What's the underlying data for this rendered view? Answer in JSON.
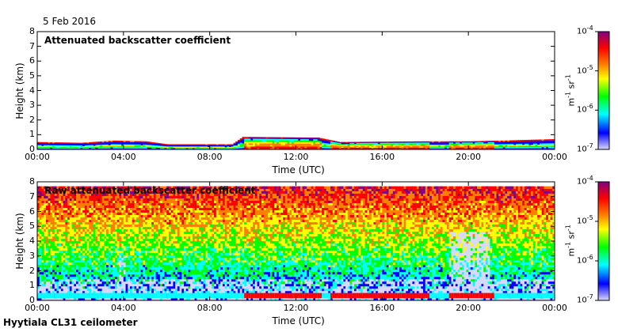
{
  "date_label": "5 Feb 2016",
  "footer_label": "Hyytiala CL31 ceilometer",
  "colorbar": {
    "colors": [
      "#d8d8ff",
      "#0000ff",
      "#00ffff",
      "#00ff00",
      "#ffff00",
      "#ff7f00",
      "#ff0000",
      "#800080"
    ],
    "ticks": [
      "10",
      "10",
      "10",
      "10"
    ],
    "exponents": [
      "-4",
      "-5",
      "-6",
      "-7"
    ],
    "unit_m": "m",
    "unit_m_exp": "-1",
    "unit_sr": "sr",
    "unit_sr_exp": "-1"
  },
  "chart_data": [
    {
      "type": "heatmap",
      "title": "Attenuated backscatter coefficient",
      "xlabel": "Time (UTC)",
      "ylabel": "Height (km)",
      "xlim": [
        0,
        24
      ],
      "ylim": [
        0,
        8
      ],
      "x_ticks": [
        "00:00",
        "04:00",
        "08:00",
        "12:00",
        "16:00",
        "20:00",
        "00:00"
      ],
      "y_ticks": [
        "0",
        "1",
        "2",
        "3",
        "4",
        "5",
        "6",
        "7",
        "8"
      ],
      "color_scale": "log",
      "clim": [
        1e-07,
        0.0001
      ],
      "boundary_layer_top_km": [
        {
          "t": 0,
          "h": 0.5
        },
        {
          "t": 2,
          "h": 0.45
        },
        {
          "t": 3.5,
          "h": 0.6
        },
        {
          "t": 5,
          "h": 0.55
        },
        {
          "t": 6,
          "h": 0.35
        },
        {
          "t": 9,
          "h": 0.35
        },
        {
          "t": 9.5,
          "h": 0.85
        },
        {
          "t": 13,
          "h": 0.8
        },
        {
          "t": 14,
          "h": 0.5
        },
        {
          "t": 18,
          "h": 0.55
        },
        {
          "t": 20,
          "h": 0.55
        },
        {
          "t": 21.5,
          "h": 0.6
        },
        {
          "t": 24,
          "h": 0.7
        }
      ]
    },
    {
      "type": "heatmap",
      "title": "Raw attenuated backscatter coefficient",
      "xlabel": "Time (UTC)",
      "ylabel": "Height (km)",
      "xlim": [
        0,
        24
      ],
      "ylim": [
        0,
        8
      ],
      "x_ticks": [
        "00:00",
        "04:00",
        "08:00",
        "12:00",
        "16:00",
        "20:00",
        "00:00"
      ],
      "y_ticks": [
        "0",
        "1",
        "2",
        "3",
        "4",
        "5",
        "6",
        "7",
        "8"
      ],
      "color_scale": "log",
      "clim": [
        1e-07,
        0.0001
      ],
      "noise_top_km": 7.7
    }
  ]
}
